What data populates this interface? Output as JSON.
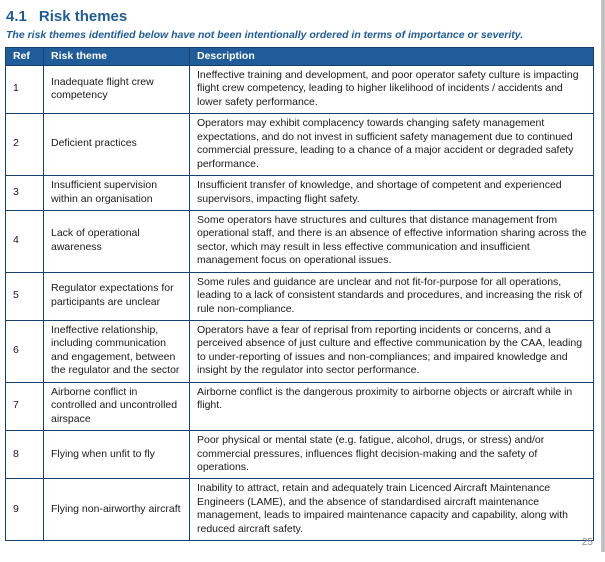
{
  "page": {
    "section_number": "4.1",
    "section_title": "Risk themes",
    "subtitle": "The risk themes identified below have not been intentionally ordered in terms of importance or severity.",
    "page_number": "25"
  },
  "table": {
    "headers": {
      "ref": "Ref",
      "theme": "Risk theme",
      "description": "Description"
    },
    "rows": [
      {
        "ref": "1",
        "theme": "Inadequate flight crew competency",
        "description": "Ineffective training and development, and poor operator safety culture is impacting flight crew competency, leading to higher likelihood of incidents / accidents and lower safety performance."
      },
      {
        "ref": "2",
        "theme": "Deficient practices",
        "description": "Operators may exhibit complacency towards changing safety management expectations, and do not invest in sufficient safety management due to continued commercial pressure, leading to a chance of a major accident or degraded safety performance."
      },
      {
        "ref": "3",
        "theme": "Insufficient supervision within an organisation",
        "description": "Insufficient transfer of knowledge, and shortage of competent and experienced supervisors, impacting flight safety."
      },
      {
        "ref": "4",
        "theme": "Lack of operational awareness",
        "description": "Some operators have structures and cultures that distance management from operational staff, and there is an absence of effective information sharing across the sector, which may result in less effective communication and insufficient management focus on operational issues."
      },
      {
        "ref": "5",
        "theme": "Regulator expectations for participants are unclear",
        "description": "Some rules and guidance are unclear and not fit-for-purpose for all operations, leading to a lack of consistent standards and procedures, and increasing the risk of rule non-compliance."
      },
      {
        "ref": "6",
        "theme": "Ineffective relationship, including communication and engagement, between the regulator and the sector",
        "description": "Operators have a fear of reprisal from reporting incidents or concerns, and a perceived absence of just culture and effective communication by the CAA, leading to under-reporting of issues and non-compliances; and impaired knowledge and insight by the regulator into sector performance."
      },
      {
        "ref": "7",
        "theme": "Airborne conflict in controlled and uncontrolled airspace",
        "description": "Airborne conflict is the dangerous proximity to airborne objects or aircraft while in flight."
      },
      {
        "ref": "8",
        "theme": "Flying when unfit to fly",
        "description": "Poor physical or mental state (e.g. fatigue, alcohol, drugs, or stress) and/or commercial pressures, influences flight decision-making and the safety of operations."
      },
      {
        "ref": "9",
        "theme": "Flying non-airworthy aircraft",
        "description": "Inability to attract, retain and adequately train Licenced Aircraft Maintenance Engineers (LAME), and the absence of standardised aircraft maintenance management, leads to impaired maintenance capacity and capability, along with reduced aircraft safety."
      }
    ]
  },
  "colors": {
    "header_bg": "#1F5C99",
    "border": "#16406F",
    "heading_text": "#1F5C99"
  }
}
